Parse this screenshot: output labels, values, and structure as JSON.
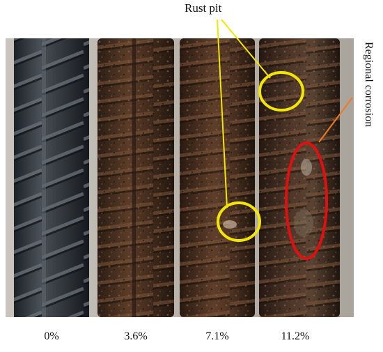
{
  "annotations": {
    "rust_pit": "Rust pit",
    "regional_corrosion": "Regional corrosion"
  },
  "samples": [
    {
      "corrosion_rate": "0%"
    },
    {
      "corrosion_rate": "3.6%"
    },
    {
      "corrosion_rate": "7.1%"
    },
    {
      "corrosion_rate": "11.2%"
    }
  ],
  "colors": {
    "rust_pit_marker": "#f2e600",
    "regional_marker": "#e01010",
    "regional_leader": "#f07a20"
  }
}
